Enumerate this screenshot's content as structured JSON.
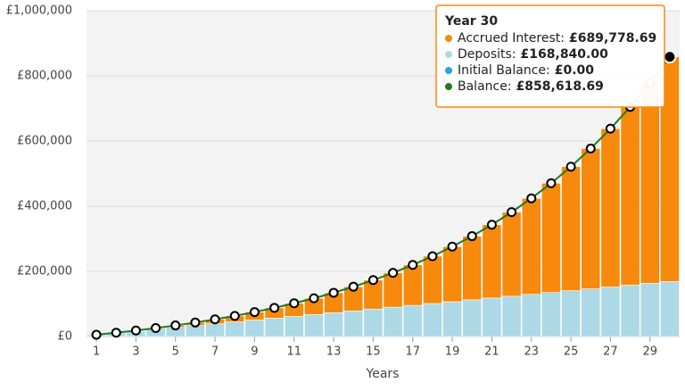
{
  "chart_data": {
    "type": "stacked-bar-line",
    "x_label": "Years",
    "x": [
      1,
      2,
      3,
      4,
      5,
      6,
      7,
      8,
      9,
      10,
      11,
      12,
      13,
      14,
      15,
      16,
      17,
      18,
      19,
      20,
      21,
      22,
      23,
      24,
      25,
      26,
      27,
      28,
      29,
      30
    ],
    "xlim": [
      0.5,
      30.5
    ],
    "xticks": [
      1,
      3,
      5,
      7,
      9,
      11,
      13,
      15,
      17,
      19,
      21,
      23,
      25,
      27,
      29
    ],
    "ylim": [
      0,
      1000000
    ],
    "yticks": [
      {
        "value": 0,
        "label": "£0"
      },
      {
        "value": 200000,
        "label": "£200,000"
      },
      {
        "value": 400000,
        "label": "£400,000"
      },
      {
        "value": 600000,
        "label": "£600,000"
      },
      {
        "value": 800000,
        "label": "£800,000"
      },
      {
        "value": 1000000,
        "label": "£1,000,000"
      }
    ],
    "grid": true,
    "series": [
      {
        "name": "Accrued Interest",
        "color": "#f7890c",
        "kind": "bar",
        "values": [
          0,
          540,
          1673,
          3454,
          5947,
          9219,
          13346,
          18409,
          24499,
          31713,
          40161,
          49959,
          61239,
          74141,
          88823,
          105455,
          124223,
          145333,
          169010,
          195501,
          225075,
          258028,
          294685,
          335401,
          380566,
          430608,
          485994,
          547237,
          614900,
          689778.69
        ]
      },
      {
        "name": "Deposits",
        "color": "#add8e6",
        "kind": "bar",
        "values": [
          5628,
          11256,
          16884,
          22512,
          28140,
          33768,
          39396,
          45024,
          50652,
          56280,
          61908,
          67536,
          73164,
          78792,
          84420,
          90048,
          95676,
          101304,
          106932,
          112560,
          118188,
          123816,
          129444,
          135072,
          140700,
          146328,
          151956,
          157584,
          163212,
          168840
        ]
      },
      {
        "name": "Initial Balance",
        "color": "#29a3e0",
        "kind": "bar",
        "values": [
          0,
          0,
          0,
          0,
          0,
          0,
          0,
          0,
          0,
          0,
          0,
          0,
          0,
          0,
          0,
          0,
          0,
          0,
          0,
          0,
          0,
          0,
          0,
          0,
          0,
          0,
          0,
          0,
          0,
          0
        ]
      },
      {
        "name": "Balance",
        "color": "#1e7b1e",
        "kind": "line",
        "values": [
          5628,
          11796,
          18557,
          25966,
          34087,
          42987,
          52742,
          63433,
          75151,
          87993,
          102069,
          117495,
          134403,
          152933,
          173243,
          195503,
          219899,
          246637,
          275942,
          308061,
          343263,
          381844,
          424129,
          470473,
          521266,
          576936,
          637950,
          704821,
          778112,
          858618.69
        ]
      }
    ],
    "tooltip": {
      "title": "Year 30",
      "rows": [
        {
          "label": "Accrued Interest:",
          "value": {
            "value": 689778.69,
            "label": "£689,778.69"
          }
        },
        {
          "label": "Deposits:",
          "value": {
            "value": 168840,
            "label": "£168,840.00"
          }
        },
        {
          "label": "Initial Balance:",
          "value": {
            "value": 0,
            "label": "£0.00"
          }
        },
        {
          "label": "Balance:",
          "value": {
            "value": 858618.69,
            "label": "£858,618.69"
          }
        }
      ]
    }
  }
}
